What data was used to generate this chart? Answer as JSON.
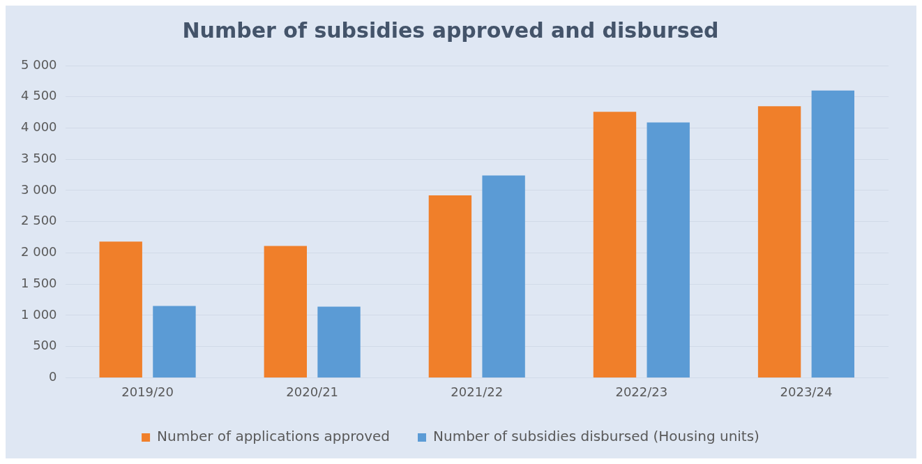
{
  "chart_data": {
    "type": "bar",
    "title": "Number of subsidies approved and disbursed",
    "categories": [
      "2019/20",
      "2020/21",
      "2021/22",
      "2022/23",
      "2023/24"
    ],
    "series": [
      {
        "name": "Number of applications approved",
        "color": "#f07f2a",
        "values": [
          2180,
          2110,
          2920,
          4260,
          4350
        ]
      },
      {
        "name": "Number of subsidies disbursed (Housing units)",
        "color": "#5b9bd5",
        "values": [
          1150,
          1140,
          3240,
          4090,
          4600
        ]
      }
    ],
    "ylim": [
      0,
      5000
    ],
    "yticks": [
      {
        "value": 0,
        "label": "0"
      },
      {
        "value": 500,
        "label": "500"
      },
      {
        "value": 1000,
        "label": "1 000"
      },
      {
        "value": 1500,
        "label": "1 500"
      },
      {
        "value": 2000,
        "label": "2 000"
      },
      {
        "value": 2500,
        "label": "2 500"
      },
      {
        "value": 3000,
        "label": "3 000"
      },
      {
        "value": 3500,
        "label": "3 500"
      },
      {
        "value": 4000,
        "label": "4 000"
      },
      {
        "value": 4500,
        "label": "4 500"
      },
      {
        "value": 5000,
        "label": "5 000"
      }
    ],
    "grid": "y",
    "legend": "bottom"
  }
}
